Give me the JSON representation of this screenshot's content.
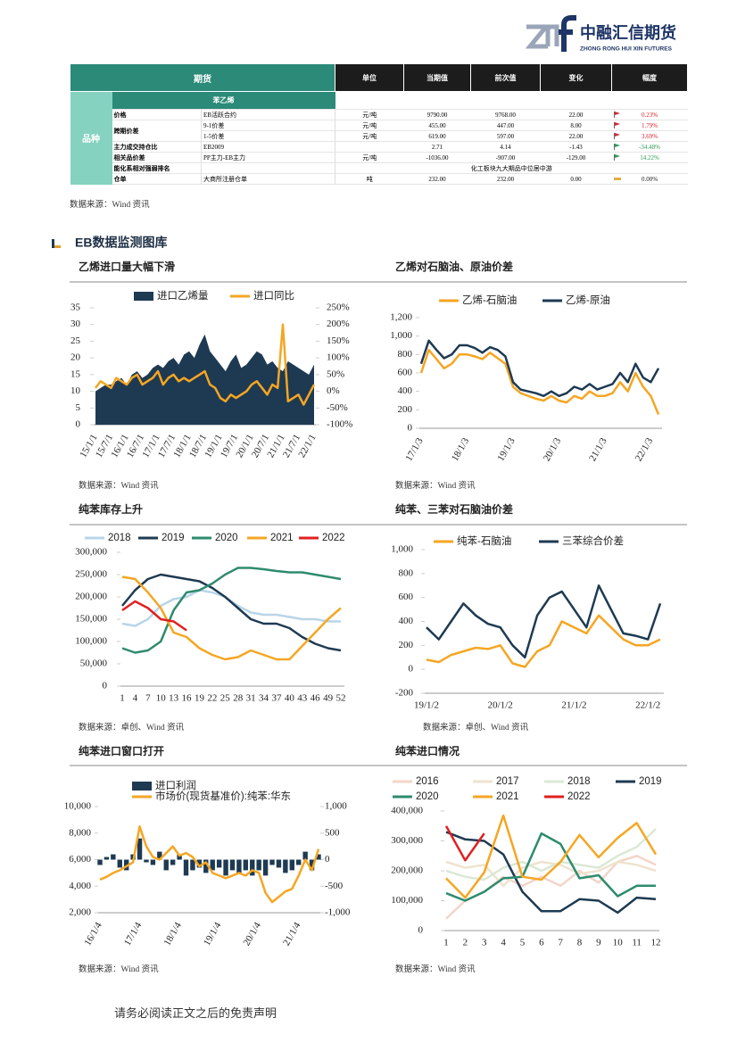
{
  "header": {
    "logo_text": "中融汇信期货",
    "logo_sub": "ZHONG RONG HUI XIN FUTURES"
  },
  "table": {
    "columns": [
      "期货",
      "单位",
      "当期值",
      "前次值",
      "变化",
      "幅度"
    ],
    "product": "苯乙烯",
    "group": "品种",
    "rows": [
      {
        "name": "价格",
        "contract": "EB活跃合约",
        "unit": "元/吨",
        "current": "9790.00",
        "previous": "9768.00",
        "change": "22.00",
        "pct": "0.23%"
      },
      {
        "name": "跨期价差",
        "contract": "9-1价差",
        "unit": "元/吨",
        "current": "455.00",
        "previous": "447.00",
        "change": "8.00",
        "pct": "1.79%"
      },
      {
        "contract": "1-5价差",
        "unit": "元/吨",
        "current": "619.00",
        "previous": "597.00",
        "change": "22.00",
        "pct": "3.69%"
      },
      {
        "name": "主力成交持仓比",
        "contract": "EB2009",
        "current": "2.71",
        "previous": "4.14",
        "change": "-1.43",
        "pct": "-34.48%"
      },
      {
        "name": "相关品价差",
        "contract": "PP主力-EB主力",
        "unit": "元/吨",
        "current": "-1036.00",
        "previous": "-907.00",
        "change": "-129.00",
        "pct": "14.22%"
      },
      {
        "name": "能化系相对强弱排名",
        "note": "化工板块九大期品中位居中游"
      },
      {
        "name": "仓单",
        "contract": "大商所注册仓单",
        "unit": "吨",
        "current": "232.00",
        "previous": "232.00",
        "change": "0.00",
        "pct": "0.00%"
      }
    ],
    "source": "数据来源：Wind 资讯"
  },
  "section_title": "EB数据监测图库",
  "footer": "请务必阅读正文之后的免责声明",
  "chart_data": [
    {
      "type": "combo",
      "title": "乙烯进口量大幅下滑",
      "source": "数据来源：Wind 资讯",
      "categories": [
        "15/1/1",
        null,
        null,
        "15/7/1",
        null,
        null,
        "16/1/1",
        null,
        null,
        "16/7/1",
        null,
        null,
        "17/1/1",
        null,
        null,
        "17/7/1",
        null,
        null,
        "18/1/1",
        null,
        null,
        "18/7/1",
        null,
        null,
        "19/1/1",
        null,
        null,
        "19/7/1",
        null,
        null,
        "20/1/1",
        null,
        null,
        "20/7/1",
        null,
        null,
        "21/1/1",
        null,
        null,
        "21/7/1",
        null,
        null,
        "22/1/1"
      ],
      "series": [
        {
          "name": "进口乙烯量",
          "type": "area",
          "color": "#1e3a52",
          "values": [
            10,
            11,
            12,
            12,
            13,
            14,
            12,
            15,
            16,
            14,
            15,
            17,
            18,
            17,
            19,
            20,
            18,
            21,
            22,
            20,
            24,
            27,
            22,
            20,
            18,
            16,
            19,
            21,
            17,
            18,
            20,
            22,
            21,
            18,
            19,
            17,
            16,
            19,
            18,
            17,
            16,
            15,
            18
          ]
        },
        {
          "name": "进口同比",
          "type": "line",
          "axis": "y2",
          "color": "#f5a623",
          "values": [
            10,
            30,
            20,
            10,
            40,
            30,
            20,
            40,
            50,
            20,
            30,
            40,
            60,
            20,
            40,
            50,
            30,
            40,
            30,
            40,
            50,
            60,
            20,
            10,
            -20,
            -30,
            -10,
            -20,
            -10,
            0,
            20,
            30,
            10,
            -10,
            20,
            10,
            200,
            -30,
            -20,
            -10,
            -40,
            -10,
            20
          ]
        }
      ],
      "ylim": [
        0,
        35
      ],
      "yticks": [
        0,
        5,
        10,
        15,
        20,
        25,
        30,
        35
      ],
      "y2lim": [
        -100,
        250
      ],
      "y2ticks": [
        {
          "value": -100,
          "label": "-100%"
        },
        {
          "value": -50,
          "label": "-50%"
        },
        {
          "value": 0,
          "label": "0%"
        },
        {
          "value": 50,
          "label": "50%"
        },
        {
          "value": 100,
          "label": "100%"
        },
        {
          "value": 150,
          "label": "150%"
        },
        {
          "value": 200,
          "label": "200%"
        },
        {
          "value": 250,
          "label": "250%"
        }
      ]
    },
    {
      "type": "line",
      "title": "乙烯对石脑油、原油价差",
      "source": "数据来源：Wind 资讯",
      "categories": [
        "17/1/3",
        null,
        null,
        null,
        null,
        null,
        "18/1/3",
        null,
        null,
        null,
        null,
        null,
        "19/1/3",
        null,
        null,
        null,
        null,
        null,
        "20/1/3",
        null,
        null,
        null,
        null,
        null,
        "21/1/3",
        null,
        null,
        null,
        null,
        null,
        "22/1/3",
        null
      ],
      "series": [
        {
          "name": "乙烯-石脑油",
          "type": "line",
          "color": "#f5a623",
          "values": [
            600,
            850,
            750,
            650,
            700,
            800,
            800,
            780,
            750,
            820,
            760,
            700,
            450,
            380,
            350,
            320,
            300,
            350,
            300,
            280,
            350,
            320,
            400,
            350,
            350,
            380,
            500,
            400,
            600,
            450,
            350,
            150
          ]
        },
        {
          "name": "乙烯-原油",
          "type": "line",
          "color": "#1e3a52",
          "values": [
            700,
            950,
            850,
            760,
            800,
            900,
            900,
            870,
            820,
            880,
            850,
            780,
            500,
            420,
            400,
            380,
            350,
            400,
            350,
            380,
            450,
            420,
            480,
            420,
            450,
            480,
            600,
            500,
            700,
            550,
            500,
            650
          ]
        }
      ],
      "ylim": [
        0,
        1200
      ],
      "yticks": [
        0,
        200,
        400,
        600,
        800,
        {
          "value": 1000,
          "label": "1,000"
        },
        {
          "value": 1200,
          "label": "1,200"
        }
      ]
    },
    {
      "type": "line",
      "title": "纯苯库存上升",
      "source": "数据来源：卓创、Wind 资讯",
      "categories": [
        1,
        4,
        7,
        10,
        13,
        16,
        19,
        22,
        25,
        28,
        31,
        34,
        37,
        40,
        43,
        46,
        49,
        52
      ],
      "series": [
        {
          "name": "2018",
          "type": "line",
          "color": "#b9d5e8",
          "values": [
            140000,
            135000,
            150000,
            180000,
            195000,
            200000,
            215000,
            210000,
            200000,
            180000,
            165000,
            160000,
            160000,
            155000,
            150000,
            150000,
            145000,
            145000
          ]
        },
        {
          "name": "2019",
          "type": "line",
          "color": "#1e3a52",
          "values": [
            180000,
            215000,
            240000,
            250000,
            245000,
            240000,
            235000,
            220000,
            200000,
            175000,
            150000,
            140000,
            140000,
            130000,
            110000,
            95000,
            85000,
            80000
          ]
        },
        {
          "name": "2020",
          "type": "line",
          "color": "#2e8b6e",
          "values": [
            85000,
            75000,
            80000,
            100000,
            170000,
            210000,
            215000,
            230000,
            250000,
            265000,
            265000,
            262000,
            258000,
            255000,
            255000,
            250000,
            245000,
            240000
          ]
        },
        {
          "name": "2021",
          "type": "line",
          "color": "#f5a623",
          "values": [
            245000,
            240000,
            210000,
            175000,
            120000,
            110000,
            85000,
            70000,
            60000,
            65000,
            80000,
            70000,
            60000,
            60000,
            90000,
            120000,
            150000,
            175000
          ]
        },
        {
          "name": "2022",
          "type": "line",
          "color": "#e02020",
          "values": [
            170000,
            190000,
            175000,
            150000,
            145000,
            125000,
            null,
            null,
            null,
            null,
            null,
            null,
            null,
            null,
            null,
            null,
            null,
            null
          ]
        }
      ],
      "ylim": [
        0,
        300000
      ],
      "yticks": [
        0,
        {
          "value": 50000,
          "label": "50,000"
        },
        {
          "value": 100000,
          "label": "100,000"
        },
        {
          "value": 150000,
          "label": "150,000"
        },
        {
          "value": 200000,
          "label": "200,000"
        },
        {
          "value": 250000,
          "label": "250,000"
        },
        {
          "value": 300000,
          "label": "300,000"
        }
      ]
    },
    {
      "type": "line",
      "title": "纯苯、三苯对石脑油价差",
      "source": "数据来源：卓创、Wind 资讯",
      "categories": [
        "19/1/2",
        null,
        null,
        null,
        null,
        null,
        "20/1/2",
        null,
        null,
        null,
        null,
        null,
        "21/1/2",
        null,
        null,
        null,
        null,
        null,
        "22/1/2",
        null
      ],
      "series": [
        {
          "name": "纯苯-石脑油",
          "type": "line",
          "color": "#f5a623",
          "values": [
            80,
            60,
            120,
            150,
            180,
            170,
            200,
            50,
            20,
            150,
            200,
            400,
            350,
            300,
            450,
            350,
            250,
            200,
            200,
            250
          ]
        },
        {
          "name": "三苯综合价差",
          "type": "line",
          "color": "#1e3a52",
          "values": [
            350,
            250,
            400,
            550,
            450,
            380,
            350,
            200,
            100,
            450,
            600,
            650,
            500,
            350,
            700,
            500,
            300,
            280,
            250,
            550
          ]
        }
      ],
      "ylim": [
        -200,
        1000
      ],
      "yticks": [
        -200,
        0,
        200,
        400,
        600,
        800,
        {
          "value": 1000,
          "label": "1,000"
        }
      ]
    },
    {
      "type": "combo",
      "title": "纯苯进口窗口打开",
      "source": "数据来源：Wind 资讯",
      "categories": [
        "16/1/4",
        null,
        null,
        null,
        null,
        null,
        "17/1/4",
        null,
        null,
        null,
        null,
        null,
        "18/1/4",
        null,
        null,
        null,
        null,
        null,
        "19/1/4",
        null,
        null,
        null,
        null,
        null,
        "20/1/4",
        null,
        null,
        null,
        null,
        null,
        "21/1/4",
        null,
        null,
        null
      ],
      "series": [
        {
          "name": "进口利润",
          "type": "bar",
          "axis": "y2",
          "color": "#1e3a52",
          "values": [
            -100,
            50,
            100,
            -150,
            -200,
            100,
            400,
            -50,
            -100,
            150,
            -200,
            -100,
            100,
            -300,
            -200,
            -150,
            -250,
            -200,
            -150,
            -300,
            -200,
            -250,
            -200,
            -300,
            -200,
            -300,
            -100,
            -150,
            -250,
            -200,
            -100,
            150,
            -200,
            100
          ]
        },
        {
          "name": "市场价(现货基准价):纯苯:华东",
          "type": "line",
          "color": "#f5a623",
          "values": [
            4500,
            4700,
            5000,
            5200,
            5500,
            5800,
            8500,
            7000,
            6200,
            6000,
            6500,
            7000,
            6300,
            6500,
            6200,
            5500,
            5800,
            5000,
            4800,
            4600,
            4800,
            5000,
            4800,
            5200,
            5000,
            3500,
            2800,
            3200,
            3600,
            3800,
            4800,
            6000,
            5200,
            6800
          ]
        }
      ],
      "ylim": [
        2000,
        10000
      ],
      "yticks": [
        {
          "value": 2000,
          "label": "2,000"
        },
        {
          "value": 4000,
          "label": "4,000"
        },
        {
          "value": 6000,
          "label": "6,000"
        },
        {
          "value": 8000,
          "label": "8,000"
        },
        {
          "value": 10000,
          "label": "10,000"
        }
      ],
      "y2lim": [
        -1000,
        1000
      ],
      "y2ticks": [
        {
          "value": -1000,
          "label": "-1,000"
        },
        {
          "value": -500,
          "label": "-500"
        },
        0,
        500,
        {
          "value": 1000,
          "label": "1,000"
        }
      ]
    },
    {
      "type": "line",
      "title": "纯苯进口情况",
      "source": "数据来源：Wind 资讯",
      "categories": [
        1,
        2,
        3,
        4,
        5,
        6,
        7,
        8,
        9,
        10,
        11,
        12
      ],
      "series": [
        {
          "name": "2016",
          "type": "line",
          "color": "#f3d5c8",
          "values": [
            40000,
            100000,
            130000,
            180000,
            150000,
            180000,
            150000,
            200000,
            160000,
            230000,
            250000,
            220000
          ]
        },
        {
          "name": "2017",
          "type": "line",
          "color": "#efe3cf",
          "values": [
            230000,
            210000,
            220000,
            150000,
            210000,
            230000,
            220000,
            190000,
            200000,
            230000,
            220000,
            200000
          ]
        },
        {
          "name": "2018",
          "type": "line",
          "color": "#dae8d5",
          "values": [
            200000,
            180000,
            170000,
            210000,
            230000,
            200000,
            230000,
            220000,
            210000,
            250000,
            280000,
            340000
          ]
        },
        {
          "name": "2019",
          "type": "line",
          "color": "#1e3a52",
          "values": [
            330000,
            305000,
            300000,
            255000,
            130000,
            65000,
            65000,
            105000,
            100000,
            60000,
            110000,
            105000
          ]
        },
        {
          "name": "2020",
          "type": "line",
          "color": "#2e8b6e",
          "values": [
            125000,
            100000,
            130000,
            175000,
            180000,
            325000,
            290000,
            175000,
            185000,
            115000,
            150000,
            150000
          ]
        },
        {
          "name": "2021",
          "type": "line",
          "color": "#f5a623",
          "values": [
            175000,
            110000,
            195000,
            385000,
            180000,
            170000,
            230000,
            320000,
            245000,
            310000,
            360000,
            255000
          ]
        },
        {
          "name": "2022",
          "type": "line",
          "color": "#e02020",
          "values": [
            350000,
            235000,
            325000,
            null,
            null,
            null,
            null,
            null,
            null,
            null,
            null,
            null
          ]
        }
      ],
      "ylim": [
        0,
        400000
      ],
      "yticks": [
        0,
        {
          "value": 100000,
          "label": "100,000"
        },
        {
          "value": 200000,
          "label": "200,000"
        },
        {
          "value": 300000,
          "label": "300,000"
        },
        {
          "value": 400000,
          "label": "400,000"
        }
      ]
    }
  ]
}
